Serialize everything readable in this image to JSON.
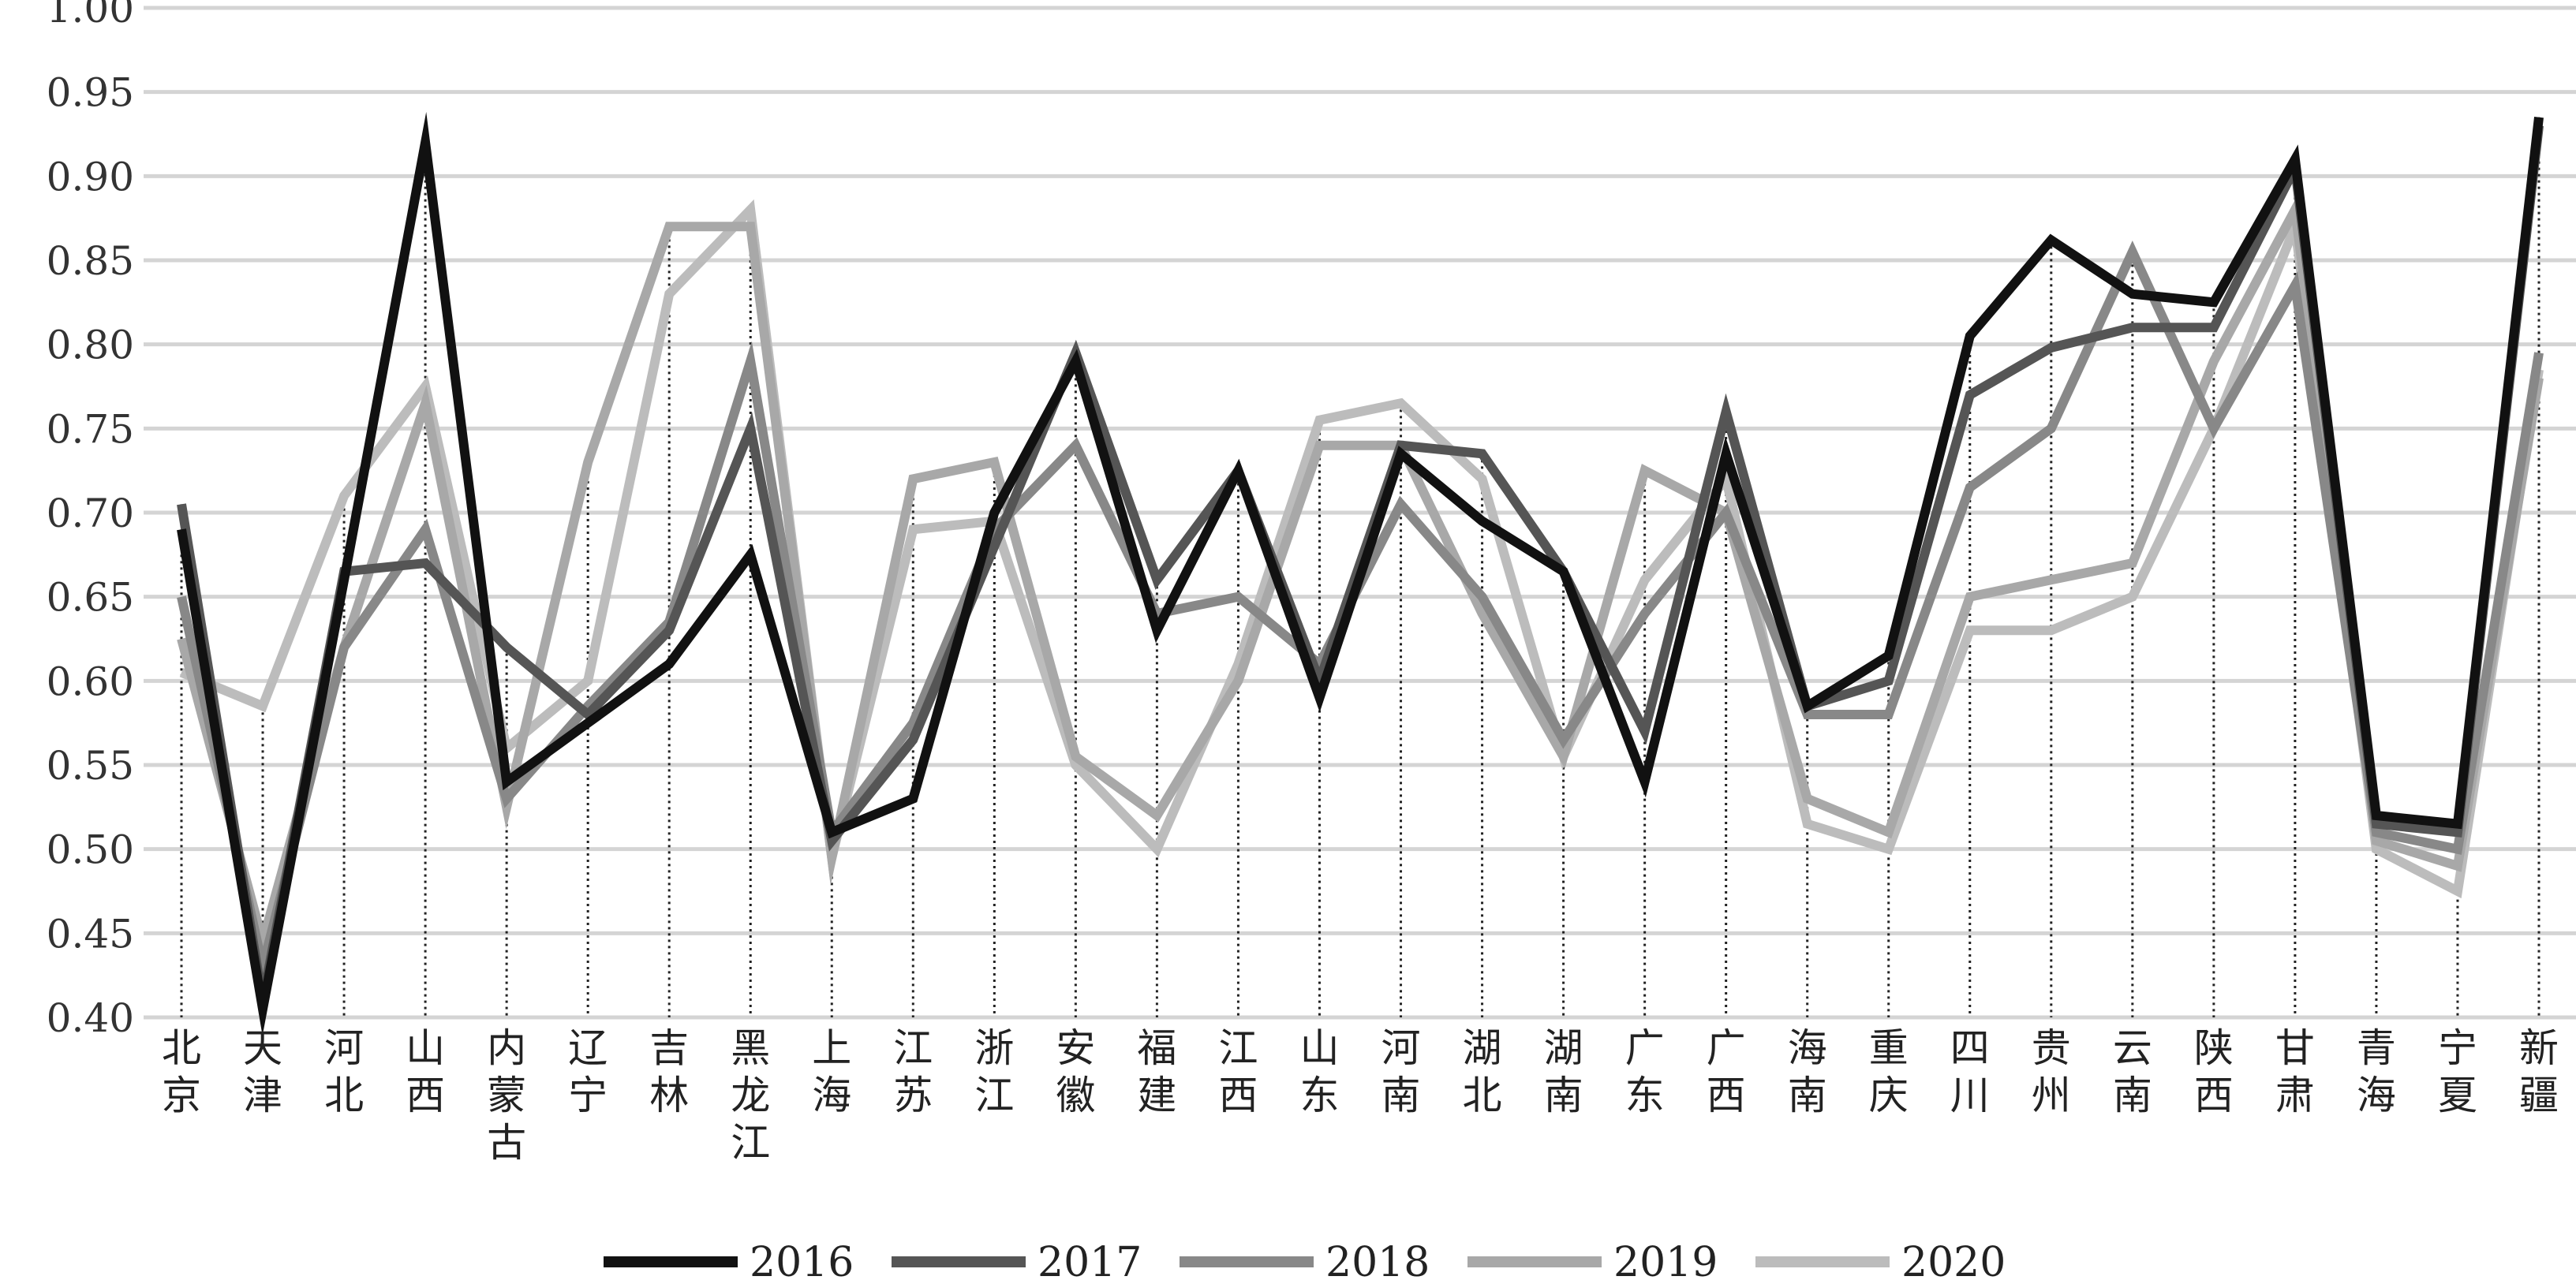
{
  "chart_data": {
    "type": "line",
    "title": "",
    "xlabel": "",
    "ylabel": "",
    "ylim": [
      0.4,
      1.0
    ],
    "yticks": [
      0.4,
      0.45,
      0.5,
      0.55,
      0.6,
      0.65,
      0.7,
      0.75,
      0.8,
      0.85,
      0.9,
      0.95,
      1.0
    ],
    "ytick_labels": [
      "0.40",
      "0.45",
      "0.50",
      "0.55",
      "0.60",
      "0.65",
      "0.70",
      "0.75",
      "0.80",
      "0.85",
      "0.90",
      "0.95",
      "1.00"
    ],
    "grid": true,
    "legend_position": "bottom",
    "categories": [
      "北京",
      "天津",
      "河北",
      "山西",
      "内蒙古",
      "辽宁",
      "吉林",
      "黑龙江",
      "上海",
      "江苏",
      "浙江",
      "安徽",
      "福建",
      "江西",
      "山东",
      "河南",
      "湖北",
      "湖南",
      "广东",
      "广西",
      "海南",
      "重庆",
      "四川",
      "贵州",
      "云南",
      "陕西",
      "甘肃",
      "青海",
      "宁夏",
      "新疆"
    ],
    "series": [
      {
        "name": "2016",
        "color": "#111111",
        "values": [
          0.69,
          0.405,
          0.66,
          0.92,
          0.54,
          0.575,
          0.61,
          0.675,
          0.51,
          0.53,
          0.7,
          0.79,
          0.63,
          0.725,
          0.59,
          0.735,
          0.695,
          0.665,
          0.54,
          0.735,
          0.585,
          0.615,
          0.805,
          0.862,
          0.83,
          0.825,
          0.91,
          0.52,
          0.515,
          0.935
        ]
      },
      {
        "name": "2017",
        "color": "#555555",
        "values": [
          0.705,
          0.41,
          0.665,
          0.67,
          0.62,
          0.58,
          0.63,
          0.75,
          0.505,
          0.565,
          0.68,
          0.795,
          0.66,
          0.725,
          0.6,
          0.74,
          0.735,
          0.665,
          0.57,
          0.76,
          0.585,
          0.6,
          0.77,
          0.798,
          0.81,
          0.81,
          0.905,
          0.515,
          0.51,
          0.93
        ]
      },
      {
        "name": "2018",
        "color": "#888888",
        "values": [
          0.65,
          0.43,
          0.62,
          0.69,
          0.53,
          0.585,
          0.635,
          0.79,
          0.51,
          0.575,
          0.69,
          0.74,
          0.64,
          0.65,
          0.61,
          0.705,
          0.65,
          0.565,
          0.64,
          0.7,
          0.58,
          0.58,
          0.715,
          0.75,
          0.855,
          0.75,
          0.835,
          0.51,
          0.5,
          0.795
        ]
      },
      {
        "name": "2019",
        "color": "#a8a8a8",
        "values": [
          0.625,
          0.445,
          0.62,
          0.765,
          0.525,
          0.73,
          0.87,
          0.87,
          0.495,
          0.72,
          0.73,
          0.555,
          0.52,
          0.6,
          0.74,
          0.74,
          0.64,
          0.555,
          0.725,
          0.7,
          0.53,
          0.51,
          0.65,
          0.66,
          0.67,
          0.79,
          0.88,
          0.505,
          0.49,
          0.78
        ]
      },
      {
        "name": "2020",
        "color": "#bcbcbc",
        "values": [
          0.605,
          0.585,
          0.71,
          0.775,
          0.56,
          0.6,
          0.83,
          0.88,
          0.495,
          0.69,
          0.695,
          0.55,
          0.5,
          0.61,
          0.755,
          0.765,
          0.72,
          0.555,
          0.66,
          0.72,
          0.515,
          0.5,
          0.63,
          0.63,
          0.65,
          0.75,
          0.87,
          0.5,
          0.475,
          0.785
        ]
      }
    ]
  }
}
